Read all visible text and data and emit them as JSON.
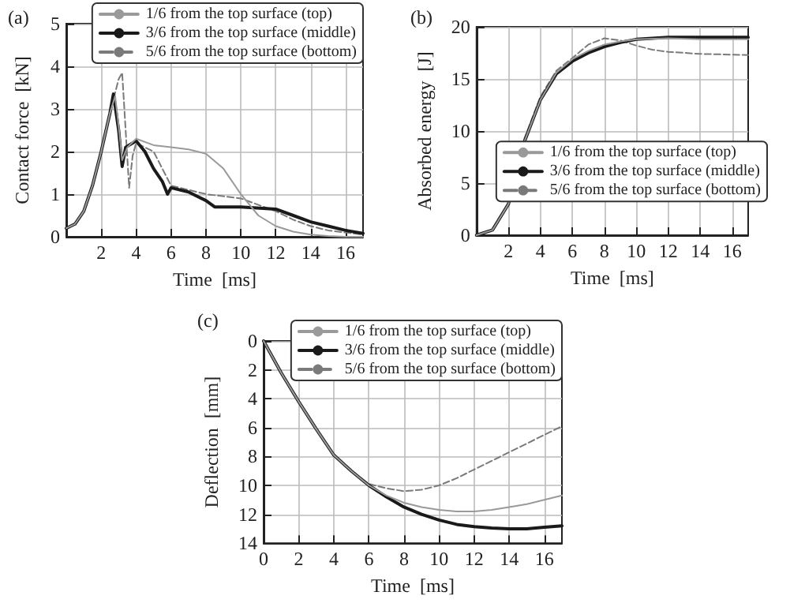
{
  "chart_data": [
    {
      "type": "line",
      "title": "(a)",
      "xlabel": "Time  [ms]",
      "ylabel": "Contact force  [kN]",
      "xlim": [
        0,
        17
      ],
      "xticks": [
        2,
        4,
        6,
        8,
        10,
        12,
        14,
        16
      ],
      "ylim": [
        0,
        5
      ],
      "yticks": [
        0,
        1,
        2,
        3,
        4,
        5
      ],
      "grid": true,
      "legend": "top right",
      "marker": "none",
      "series": [
        {
          "name": "1/6 from the top surface (top)",
          "color": "#9a9a9a",
          "line_style": "solid",
          "x": [
            0,
            0.5,
            1,
            1.5,
            2,
            2.5,
            2.8,
            3,
            3.2,
            3.5,
            4,
            5,
            6,
            7,
            8,
            9,
            10,
            11,
            12,
            13,
            14,
            15,
            16,
            17
          ],
          "values": [
            0.2,
            0.3,
            0.6,
            1.2,
            2,
            2.9,
            3.3,
            2.6,
            1.8,
            2.1,
            2.3,
            2.15,
            2.1,
            2.05,
            1.95,
            1.6,
            1,
            0.5,
            0.25,
            0.12,
            0.05,
            0.02,
            0,
            0
          ]
        },
        {
          "name": "3/6 from the top surface (middle)",
          "color": "#1a1a1a",
          "line_style": "solid",
          "x": [
            0,
            0.5,
            1,
            1.5,
            2,
            2.5,
            2.7,
            3,
            3.2,
            3.4,
            4,
            4.5,
            5,
            5.5,
            5.8,
            6,
            7,
            8,
            8.5,
            10,
            12,
            13,
            14,
            15,
            16,
            17
          ],
          "values": [
            0.2,
            0.3,
            0.6,
            1.2,
            2,
            2.9,
            3.35,
            2.5,
            1.65,
            2.1,
            2.25,
            2,
            1.6,
            1.3,
            1,
            1.15,
            1.05,
            0.85,
            0.7,
            0.7,
            0.65,
            0.5,
            0.35,
            0.25,
            0.15,
            0.08
          ]
        },
        {
          "name": "5/6 from the top surface (bottom)",
          "color": "#7a7a7a",
          "line_style": "dashed",
          "x": [
            0,
            0.5,
            1,
            1.5,
            2,
            2.5,
            3,
            3.2,
            3.4,
            3.6,
            3.8,
            4,
            5,
            5.5,
            6,
            7,
            8,
            10,
            12,
            13,
            14,
            15,
            16,
            17
          ],
          "values": [
            0.2,
            0.3,
            0.6,
            1.2,
            2,
            2.9,
            3.7,
            3.85,
            2.5,
            1.15,
            1.9,
            2.2,
            2,
            1.6,
            1.2,
            1.1,
            1,
            0.9,
            0.6,
            0.4,
            0.25,
            0.15,
            0.1,
            0.05
          ]
        }
      ]
    },
    {
      "type": "line",
      "title": "(b)",
      "xlabel": "Time  [ms]",
      "ylabel": "Absorbed energy  [J]",
      "xlim": [
        0,
        17
      ],
      "xticks": [
        2,
        4,
        6,
        8,
        10,
        12,
        14,
        16
      ],
      "ylim": [
        0,
        20
      ],
      "yticks": [
        0,
        5,
        10,
        15,
        20
      ],
      "grid": true,
      "legend": "right",
      "marker": "none",
      "series": [
        {
          "name": "1/6 from the top surface (top)",
          "color": "#9a9a9a",
          "line_style": "solid",
          "x": [
            0,
            1,
            2,
            2.5,
            3,
            4,
            5,
            6,
            7,
            8,
            9,
            10,
            12,
            14,
            17
          ],
          "values": [
            0,
            0.5,
            3,
            6,
            9,
            13,
            15.6,
            16.9,
            17.7,
            18.3,
            18.6,
            18.8,
            18.9,
            18.8,
            18.8
          ]
        },
        {
          "name": "3/6 from the top surface (middle)",
          "color": "#1a1a1a",
          "line_style": "solid",
          "x": [
            0,
            1,
            2,
            2.5,
            3,
            4,
            5,
            6,
            7,
            8,
            9,
            10,
            12,
            14,
            17
          ],
          "values": [
            0,
            0.5,
            3,
            6,
            9,
            13,
            15.5,
            16.7,
            17.5,
            18.1,
            18.5,
            18.8,
            19,
            19,
            19
          ]
        },
        {
          "name": "5/6 from the top surface (bottom)",
          "color": "#7a7a7a",
          "line_style": "dashed",
          "x": [
            0,
            1,
            2,
            2.5,
            3,
            4,
            5,
            6,
            7,
            8,
            9,
            10,
            11,
            12,
            14,
            17
          ],
          "values": [
            0,
            0.5,
            3,
            6,
            9.3,
            13.3,
            15.8,
            17,
            18.3,
            18.9,
            18.7,
            18.2,
            17.8,
            17.6,
            17.4,
            17.3
          ]
        }
      ]
    },
    {
      "type": "line",
      "title": "(c)",
      "xlabel": "Time  [ms]",
      "ylabel": "Deflection  [mm]",
      "xlim": [
        0,
        17
      ],
      "xticks": [
        0,
        2,
        4,
        6,
        8,
        10,
        12,
        14,
        16
      ],
      "ylim": [
        14,
        0
      ],
      "yticks": [
        0,
        2,
        4,
        6,
        8,
        10,
        12,
        14
      ],
      "grid": true,
      "legend": "top right",
      "marker": "none",
      "series": [
        {
          "name": "1/6 from the top surface (top)",
          "color": "#9a9a9a",
          "line_style": "solid",
          "x": [
            0,
            1,
            2,
            3,
            4,
            5,
            6,
            7,
            8,
            9,
            10,
            11,
            12,
            13,
            14,
            15,
            16,
            17
          ],
          "values": [
            0,
            2.2,
            4.2,
            6.1,
            7.9,
            9,
            10,
            10.7,
            11.2,
            11.5,
            11.7,
            11.8,
            11.8,
            11.7,
            11.5,
            11.3,
            11,
            10.7
          ]
        },
        {
          "name": "3/6 from the top surface (middle)",
          "color": "#1a1a1a",
          "line_style": "solid",
          "x": [
            0,
            1,
            2,
            3,
            4,
            5,
            6,
            7,
            8,
            9,
            10,
            11,
            12,
            13,
            14,
            15,
            16,
            17
          ],
          "values": [
            0,
            2.2,
            4.2,
            6.1,
            7.9,
            9,
            10,
            10.8,
            11.5,
            12,
            12.4,
            12.7,
            12.85,
            12.95,
            13,
            13,
            12.9,
            12.8
          ]
        },
        {
          "name": "5/6 from the top surface (bottom)",
          "color": "#7a7a7a",
          "line_style": "dashed",
          "x": [
            0,
            1,
            2,
            3,
            4,
            5,
            6,
            7,
            8,
            9,
            10,
            11,
            12,
            13,
            14,
            15,
            16,
            17
          ],
          "values": [
            0,
            2.2,
            4.2,
            6.1,
            7.9,
            9,
            9.9,
            10.2,
            10.4,
            10.3,
            10,
            9.5,
            8.9,
            8.3,
            7.7,
            7.1,
            6.5,
            5.9
          ]
        }
      ]
    }
  ]
}
